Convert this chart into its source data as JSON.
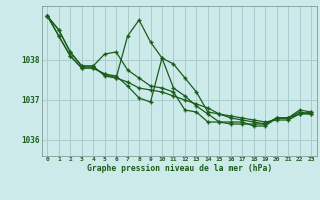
{
  "title": "Graphe pression niveau de la mer (hPa)",
  "background_color": "#cceaea",
  "grid_color": "#aacccc",
  "line_color": "#1a5c1a",
  "xlim": [
    -0.5,
    23.5
  ],
  "ylim": [
    1035.6,
    1039.35
  ],
  "yticks": [
    1036,
    1037,
    1038
  ],
  "xticks": [
    0,
    1,
    2,
    3,
    4,
    5,
    6,
    7,
    8,
    9,
    10,
    11,
    12,
    13,
    14,
    15,
    16,
    17,
    18,
    19,
    20,
    21,
    22,
    23
  ],
  "series": [
    [
      1039.1,
      1038.75,
      1038.2,
      1037.85,
      1037.85,
      1037.6,
      1037.55,
      1038.6,
      1039.0,
      1038.45,
      1038.05,
      1037.9,
      1037.55,
      1037.2,
      1036.7,
      1036.65,
      1036.55,
      1036.5,
      1036.45,
      1036.4,
      1036.55,
      1036.55,
      1036.65,
      1036.65
    ],
    [
      1039.1,
      1038.75,
      1038.2,
      1037.85,
      1037.85,
      1038.15,
      1038.2,
      1037.75,
      1037.55,
      1037.35,
      1037.3,
      1037.2,
      1036.75,
      1036.7,
      1036.45,
      1036.45,
      1036.4,
      1036.4,
      1036.4,
      1036.4,
      1036.55,
      1036.55,
      1036.7,
      1036.65
    ],
    [
      1039.1,
      1038.6,
      1038.1,
      1037.8,
      1037.8,
      1037.65,
      1037.55,
      1037.45,
      1037.3,
      1037.25,
      1037.2,
      1037.1,
      1037.0,
      1036.9,
      1036.8,
      1036.65,
      1036.6,
      1036.55,
      1036.5,
      1036.45,
      1036.5,
      1036.5,
      1036.65,
      1036.7
    ],
    [
      1039.1,
      1038.6,
      1038.1,
      1037.8,
      1037.8,
      1037.65,
      1037.6,
      1037.35,
      1037.05,
      1036.95,
      1038.05,
      1037.3,
      1037.1,
      1036.85,
      1036.65,
      1036.45,
      1036.45,
      1036.45,
      1036.35,
      1036.35,
      1036.55,
      1036.55,
      1036.75,
      1036.7
    ]
  ]
}
